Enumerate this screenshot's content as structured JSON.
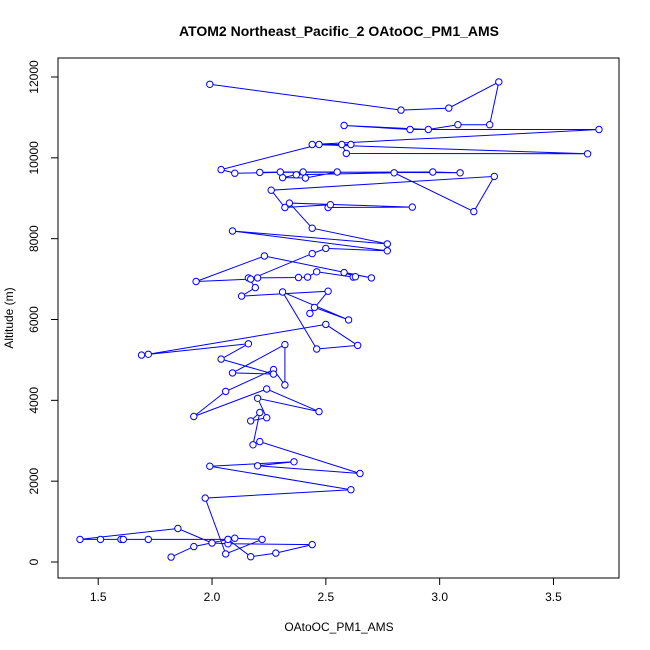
{
  "chart_data": {
    "type": "line",
    "title": "ATOM2 Northeast_Pacific_2 OAtoOC_PM1_AMS",
    "xlabel": "OAtoOC_PM1_AMS",
    "ylabel": "Altitude (m)",
    "xlim": [
      1.4,
      3.72
    ],
    "ylim": [
      -100,
      12500
    ],
    "xticks": [
      1.5,
      2.0,
      2.5,
      3.0,
      3.5
    ],
    "xtick_labels": [
      "1.5",
      "2.0",
      "2.5",
      "3.0",
      "3.5"
    ],
    "yticks": [
      0,
      2000,
      4000,
      6000,
      8000,
      10000,
      12000
    ],
    "ytick_labels": [
      "0",
      "2000",
      "4000",
      "6000",
      "8000",
      "10000",
      "12000"
    ],
    "grid": false,
    "legend": "none",
    "color": "#0000ff",
    "marker": "open-circle",
    "series": [
      {
        "x": [
          1.82,
          1.92,
          2.07,
          2.17,
          2.28,
          2.44,
          2.07,
          2.0,
          1.85,
          1.42,
          1.51,
          1.6,
          1.61,
          1.72,
          2.07,
          2.1,
          2.22,
          2.06,
          1.97,
          2.61,
          1.99,
          2.36,
          2.2,
          2.65,
          2.21,
          2.18,
          2.21,
          2.17,
          2.24,
          2.2,
          2.47,
          2.24,
          1.92,
          2.06,
          2.27,
          2.32,
          2.32,
          2.09,
          2.27,
          2.04,
          2.16,
          1.69,
          1.72,
          2.5,
          2.64,
          2.46,
          2.31,
          2.6,
          2.45,
          2.43,
          2.51,
          2.13,
          2.19,
          2.16,
          2.2,
          2.38,
          2.42,
          2.46,
          2.62,
          2.63,
          2.58,
          2.7,
          2.23,
          1.93,
          2.17,
          2.44,
          2.5,
          2.77,
          2.09,
          2.77,
          2.44,
          2.34,
          2.88,
          2.51,
          2.52,
          2.32,
          2.26,
          3.24,
          3.15,
          2.8,
          2.37,
          2.31,
          2.41,
          2.55,
          2.3,
          2.21,
          2.97,
          3.09,
          2.4,
          2.1,
          2.04,
          2.47,
          2.61,
          2.57,
          2.59,
          3.65,
          2.44,
          3.7,
          2.87,
          2.58,
          2.95,
          3.08,
          3.22,
          3.26,
          3.04,
          2.83,
          1.99
        ]
      }
    ],
    "points": [
      [
        1.82,
        120
      ],
      [
        1.92,
        380
      ],
      [
        2.07,
        560
      ],
      [
        2.17,
        130
      ],
      [
        2.28,
        220
      ],
      [
        2.44,
        430
      ],
      [
        2.07,
        450
      ],
      [
        2.0,
        470
      ],
      [
        1.85,
        830
      ],
      [
        1.42,
        560
      ],
      [
        1.51,
        560
      ],
      [
        1.6,
        560
      ],
      [
        1.61,
        560
      ],
      [
        1.72,
        560
      ],
      [
        2.07,
        560
      ],
      [
        2.1,
        590
      ],
      [
        2.22,
        560
      ],
      [
        2.06,
        200
      ],
      [
        1.97,
        1580
      ],
      [
        2.61,
        1790
      ],
      [
        1.99,
        2370
      ],
      [
        2.36,
        2480
      ],
      [
        2.2,
        2380
      ],
      [
        2.65,
        2190
      ],
      [
        2.21,
        2980
      ],
      [
        2.18,
        2900
      ],
      [
        2.21,
        3700
      ],
      [
        2.17,
        3490
      ],
      [
        2.24,
        3570
      ],
      [
        2.2,
        4050
      ],
      [
        2.47,
        3720
      ],
      [
        2.24,
        4280
      ],
      [
        1.92,
        3600
      ],
      [
        2.06,
        4220
      ],
      [
        2.27,
        4760
      ],
      [
        2.32,
        4380
      ],
      [
        2.32,
        5380
      ],
      [
        2.09,
        4680
      ],
      [
        2.27,
        4650
      ],
      [
        2.04,
        5020
      ],
      [
        2.16,
        5400
      ],
      [
        1.69,
        5120
      ],
      [
        1.72,
        5140
      ],
      [
        2.5,
        5880
      ],
      [
        2.64,
        5360
      ],
      [
        2.46,
        5270
      ],
      [
        2.31,
        6680
      ],
      [
        2.6,
        5990
      ],
      [
        2.45,
        6300
      ],
      [
        2.43,
        6150
      ],
      [
        2.51,
        6700
      ],
      [
        2.13,
        6580
      ],
      [
        2.19,
        6790
      ],
      [
        2.16,
        7030
      ],
      [
        2.2,
        7030
      ],
      [
        2.38,
        7040
      ],
      [
        2.42,
        7050
      ],
      [
        2.46,
        7180
      ],
      [
        2.62,
        7050
      ],
      [
        2.63,
        7060
      ],
      [
        2.58,
        7160
      ],
      [
        2.7,
        7030
      ],
      [
        2.23,
        7570
      ],
      [
        1.93,
        6940
      ],
      [
        2.17,
        7000
      ],
      [
        2.44,
        7630
      ],
      [
        2.5,
        7760
      ],
      [
        2.77,
        7700
      ],
      [
        2.09,
        8190
      ],
      [
        2.77,
        7870
      ],
      [
        2.44,
        8260
      ],
      [
        2.34,
        8880
      ],
      [
        2.88,
        8780
      ],
      [
        2.51,
        8770
      ],
      [
        2.52,
        8840
      ],
      [
        2.32,
        8770
      ],
      [
        2.26,
        9200
      ],
      [
        3.24,
        9540
      ],
      [
        3.15,
        8670
      ],
      [
        2.8,
        9630
      ],
      [
        2.37,
        9580
      ],
      [
        2.31,
        9510
      ],
      [
        2.41,
        9500
      ],
      [
        2.55,
        9650
      ],
      [
        2.3,
        9650
      ],
      [
        2.21,
        9640
      ],
      [
        2.97,
        9650
      ],
      [
        3.09,
        9630
      ],
      [
        2.4,
        9650
      ],
      [
        2.1,
        9620
      ],
      [
        2.04,
        9710
      ],
      [
        2.47,
        10330
      ],
      [
        2.61,
        10330
      ],
      [
        2.57,
        10330
      ],
      [
        2.59,
        10110
      ],
      [
        3.65,
        10100
      ],
      [
        2.44,
        10330
      ],
      [
        3.7,
        10700
      ],
      [
        2.87,
        10700
      ],
      [
        2.58,
        10800
      ],
      [
        2.95,
        10700
      ],
      [
        3.08,
        10820
      ],
      [
        3.22,
        10820
      ],
      [
        3.26,
        11880
      ],
      [
        3.04,
        11230
      ],
      [
        2.83,
        11180
      ],
      [
        1.99,
        11820
      ]
    ]
  }
}
